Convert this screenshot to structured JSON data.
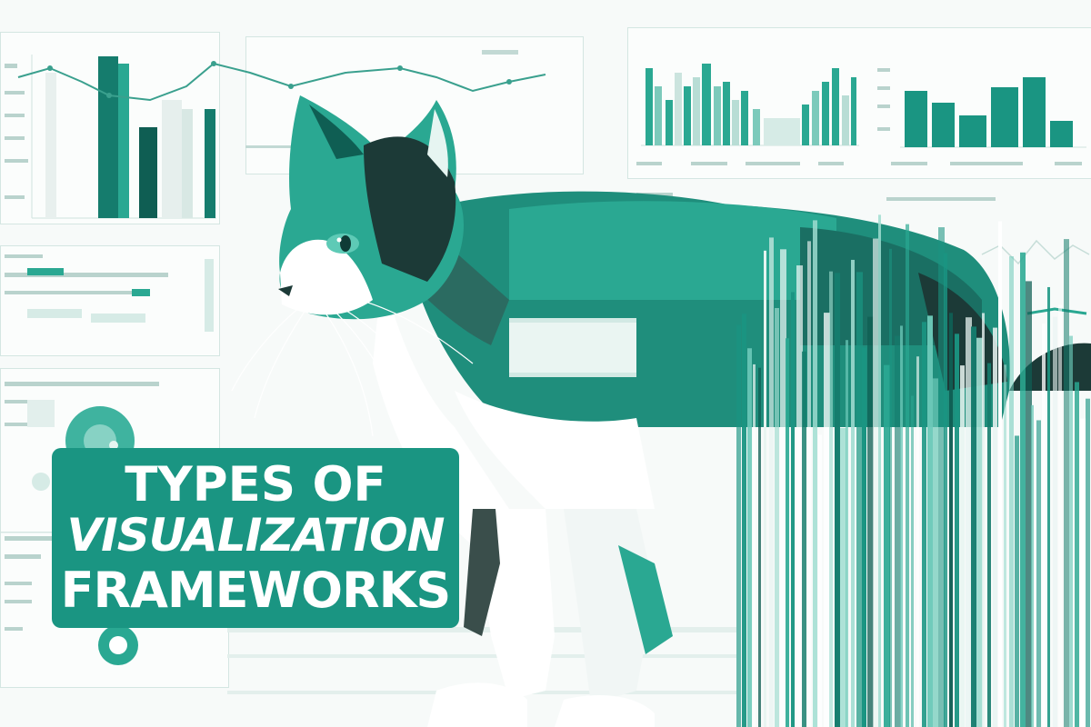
{
  "title": {
    "line1": "TYPES OF",
    "line2": "VISUALIZATION",
    "line3": "FRAMEWORKS"
  },
  "colors": {
    "accent": "#1a9582",
    "dark_teal": "#0f5e53",
    "light_teal": "#6cc9b9",
    "cat_dark": "#1c3a37",
    "background": "#f7faf9"
  },
  "illustration": {
    "subject": "cat",
    "background_icons": [
      "bar-chart-icon",
      "line-chart-icon",
      "donut-chart-icon",
      "dashboard-panel-icon"
    ]
  }
}
